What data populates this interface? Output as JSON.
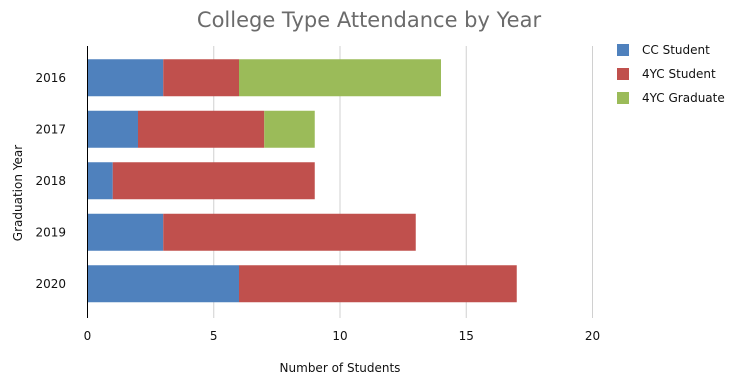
{
  "chart_data": {
    "type": "bar",
    "orientation": "horizontal",
    "stacked": true,
    "title": "College Type Attendance by Year",
    "xlabel": "Number of Students",
    "ylabel": "Graduation Year",
    "categories": [
      "2016",
      "2017",
      "2018",
      "2019",
      "2020"
    ],
    "series": [
      {
        "name": "CC Student",
        "color": "#4f81bd",
        "values": [
          3,
          2,
          1,
          3,
          6
        ]
      },
      {
        "name": "4YC Student",
        "color": "#c0504d",
        "values": [
          3,
          5,
          8,
          10,
          11
        ]
      },
      {
        "name": "4YC Graduate",
        "color": "#9bbb59",
        "values": [
          8,
          2,
          0,
          0,
          0
        ]
      }
    ],
    "xlim": [
      0,
      20
    ],
    "xticks": [
      "0",
      "5",
      "10",
      "15",
      "20"
    ],
    "grid": true,
    "legend_position": "top-right"
  }
}
